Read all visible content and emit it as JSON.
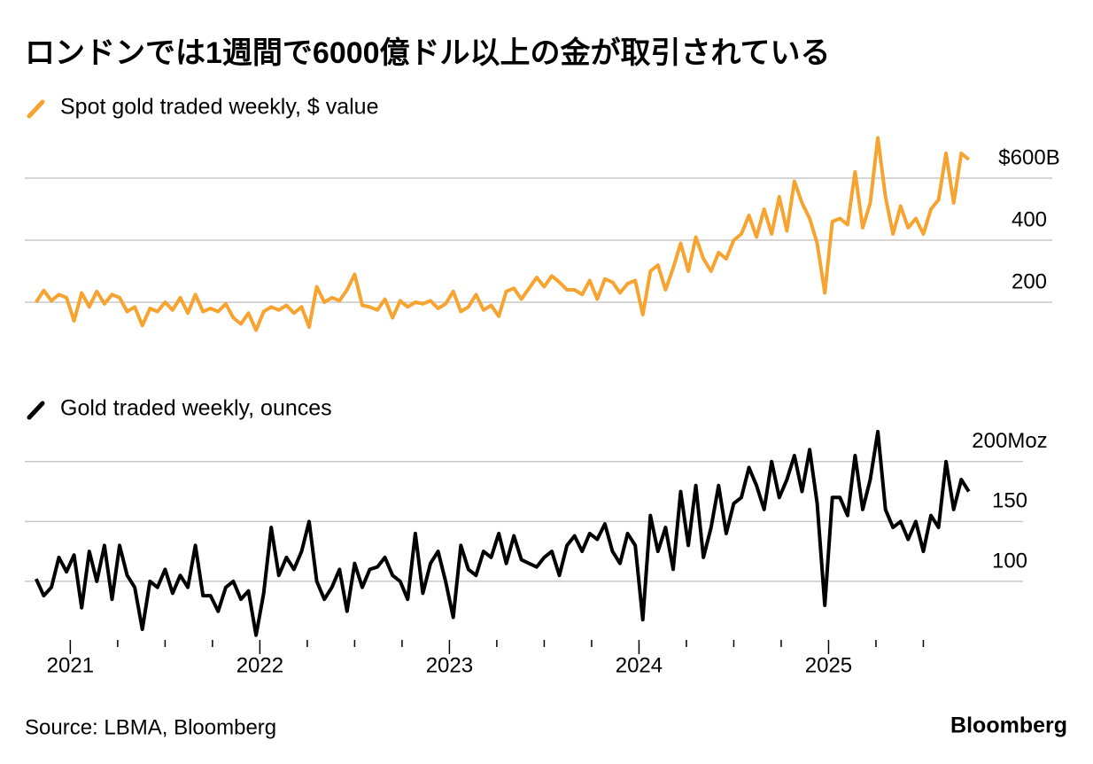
{
  "title": "ロンドンでは1週間で6000億ドル以上の金が取引されている",
  "source": "Source: LBMA, Bloomberg",
  "brand": "Bloomberg",
  "chart_data": [
    {
      "type": "line",
      "x": [
        2020.82,
        2020.86,
        2020.9,
        2020.94,
        2020.98,
        2021.02,
        2021.06,
        2021.1,
        2021.14,
        2021.18,
        2021.22,
        2021.26,
        2021.3,
        2021.34,
        2021.38,
        2021.42,
        2021.46,
        2021.5,
        2021.54,
        2021.58,
        2021.62,
        2021.66,
        2021.7,
        2021.74,
        2021.78,
        2021.82,
        2021.86,
        2021.9,
        2021.94,
        2021.98,
        2022.02,
        2022.06,
        2022.1,
        2022.14,
        2022.18,
        2022.22,
        2022.26,
        2022.3,
        2022.34,
        2022.38,
        2022.42,
        2022.46,
        2022.5,
        2022.54,
        2022.58,
        2022.62,
        2022.66,
        2022.7,
        2022.74,
        2022.78,
        2022.82,
        2022.86,
        2022.9,
        2022.94,
        2022.98,
        2023.02,
        2023.06,
        2023.1,
        2023.14,
        2023.18,
        2023.22,
        2023.26,
        2023.3,
        2023.34,
        2023.38,
        2023.42,
        2023.46,
        2023.5,
        2023.54,
        2023.58,
        2023.62,
        2023.66,
        2023.7,
        2023.74,
        2023.78,
        2023.82,
        2023.86,
        2023.9,
        2023.94,
        2023.98,
        2024.02,
        2024.06,
        2024.1,
        2024.14,
        2024.18,
        2024.22,
        2024.26,
        2024.3,
        2024.34,
        2024.38,
        2024.42,
        2024.46,
        2024.5,
        2024.54,
        2024.58,
        2024.62,
        2024.66,
        2024.7,
        2024.74,
        2024.78,
        2024.82,
        2024.86,
        2024.9,
        2024.94,
        2024.98,
        2025.02,
        2025.06,
        2025.1,
        2025.14,
        2025.18,
        2025.22,
        2025.26,
        2025.3,
        2025.34,
        2025.38,
        2025.42,
        2025.46,
        2025.5,
        2025.54,
        2025.58,
        2025.62,
        2025.66,
        2025.7,
        2025.74
      ],
      "xlim": [
        2020.76,
        2026.18
      ],
      "ylim": [
        60,
        750
      ],
      "yticks": [
        200,
        400,
        {
          "value": 600,
          "label": "$600B"
        }
      ],
      "grid": true,
      "series": [
        {
          "name": "Spot gold traded weekly, $ value",
          "color": "#f7a330",
          "values": [
            200,
            238,
            205,
            225,
            215,
            140,
            230,
            185,
            235,
            195,
            225,
            215,
            170,
            185,
            125,
            180,
            170,
            200,
            175,
            215,
            165,
            225,
            170,
            180,
            170,
            195,
            150,
            130,
            165,
            110,
            170,
            185,
            175,
            190,
            165,
            185,
            120,
            250,
            200,
            215,
            205,
            240,
            290,
            190,
            185,
            175,
            210,
            150,
            205,
            185,
            200,
            195,
            205,
            180,
            195,
            235,
            170,
            185,
            225,
            175,
            190,
            155,
            235,
            245,
            210,
            245,
            280,
            250,
            285,
            265,
            240,
            240,
            225,
            270,
            210,
            275,
            265,
            230,
            260,
            270,
            160,
            300,
            320,
            240,
            310,
            390,
            300,
            410,
            340,
            300,
            360,
            340,
            400,
            420,
            480,
            410,
            500,
            420,
            540,
            430,
            590,
            520,
            470,
            390,
            230,
            460,
            470,
            450,
            620,
            440,
            520,
            730,
            540,
            420,
            510,
            440,
            470,
            420,
            500,
            530,
            680,
            520,
            680,
            660
          ]
        }
      ]
    },
    {
      "type": "line",
      "x": [
        2020.82,
        2020.86,
        2020.9,
        2020.94,
        2020.98,
        2021.02,
        2021.06,
        2021.1,
        2021.14,
        2021.18,
        2021.22,
        2021.26,
        2021.3,
        2021.34,
        2021.38,
        2021.42,
        2021.46,
        2021.5,
        2021.54,
        2021.58,
        2021.62,
        2021.66,
        2021.7,
        2021.74,
        2021.78,
        2021.82,
        2021.86,
        2021.9,
        2021.94,
        2021.98,
        2022.02,
        2022.06,
        2022.1,
        2022.14,
        2022.18,
        2022.22,
        2022.26,
        2022.3,
        2022.34,
        2022.38,
        2022.42,
        2022.46,
        2022.5,
        2022.54,
        2022.58,
        2022.62,
        2022.66,
        2022.7,
        2022.74,
        2022.78,
        2022.82,
        2022.86,
        2022.9,
        2022.94,
        2022.98,
        2023.02,
        2023.06,
        2023.1,
        2023.14,
        2023.18,
        2023.22,
        2023.26,
        2023.3,
        2023.34,
        2023.38,
        2023.42,
        2023.46,
        2023.5,
        2023.54,
        2023.58,
        2023.62,
        2023.66,
        2023.7,
        2023.74,
        2023.78,
        2023.82,
        2023.86,
        2023.9,
        2023.94,
        2023.98,
        2024.02,
        2024.06,
        2024.1,
        2024.14,
        2024.18,
        2024.22,
        2024.26,
        2024.3,
        2024.34,
        2024.38,
        2024.42,
        2024.46,
        2024.5,
        2024.54,
        2024.58,
        2024.62,
        2024.66,
        2024.7,
        2024.74,
        2024.78,
        2024.82,
        2024.86,
        2024.9,
        2024.94,
        2024.98,
        2025.02,
        2025.06,
        2025.1,
        2025.14,
        2025.18,
        2025.22,
        2025.26,
        2025.3,
        2025.34,
        2025.38,
        2025.42,
        2025.46,
        2025.5,
        2025.54,
        2025.58,
        2025.62,
        2025.66,
        2025.7,
        2025.74
      ],
      "xlim": [
        2020.76,
        2026.18
      ],
      "ylim": [
        50,
        225
      ],
      "yticks": [
        100,
        150,
        {
          "value": 200,
          "label": "200Moz"
        }
      ],
      "xticks": [
        2021,
        2022,
        2023,
        2024,
        2025
      ],
      "xminor_ticks": [
        2021.25,
        2021.5,
        2021.75,
        2022.25,
        2022.5,
        2022.75,
        2023.25,
        2023.5,
        2023.75,
        2024.25,
        2024.5,
        2024.75,
        2025.25,
        2025.5
      ],
      "grid": true,
      "series": [
        {
          "name": "Gold traded weekly, ounces",
          "color": "#000000",
          "values": [
            102,
            88,
            95,
            120,
            108,
            122,
            78,
            125,
            100,
            130,
            85,
            130,
            105,
            95,
            60,
            100,
            95,
            110,
            90,
            105,
            95,
            130,
            88,
            88,
            75,
            95,
            100,
            85,
            92,
            55,
            90,
            145,
            105,
            120,
            110,
            125,
            150,
            100,
            85,
            95,
            110,
            75,
            115,
            95,
            110,
            112,
            120,
            105,
            100,
            85,
            140,
            90,
            115,
            125,
            100,
            70,
            130,
            110,
            105,
            125,
            120,
            140,
            115,
            138,
            118,
            115,
            112,
            120,
            125,
            105,
            130,
            138,
            125,
            140,
            135,
            148,
            125,
            115,
            140,
            130,
            68,
            155,
            125,
            145,
            110,
            175,
            130,
            180,
            120,
            145,
            180,
            140,
            165,
            170,
            195,
            180,
            160,
            200,
            170,
            185,
            205,
            175,
            210,
            165,
            80,
            170,
            170,
            155,
            205,
            160,
            185,
            225,
            160,
            145,
            150,
            135,
            150,
            125,
            155,
            145,
            200,
            160,
            185,
            175
          ]
        }
      ]
    }
  ]
}
